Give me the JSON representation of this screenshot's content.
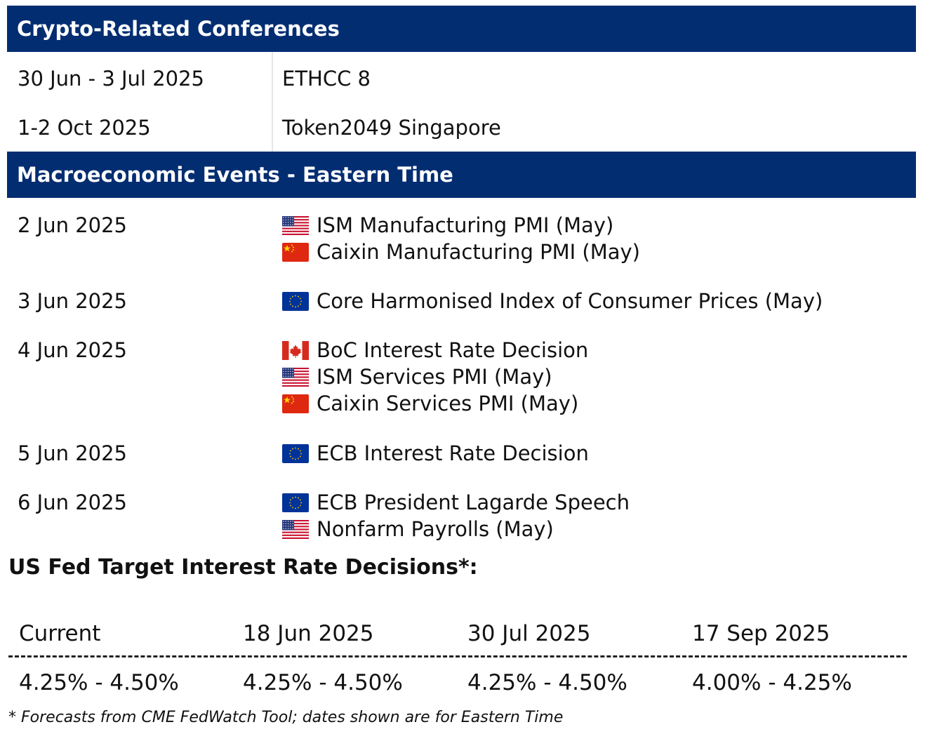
{
  "conferences": {
    "title": "Crypto-Related Conferences",
    "rows": [
      {
        "date": "30 Jun - 3 Jul 2025",
        "event": "ETHCC 8"
      },
      {
        "date": "1-2 Oct 2025",
        "event": "Token2049 Singapore"
      }
    ]
  },
  "macro": {
    "title": "Macroeconomic Events - Eastern Time",
    "rows": [
      {
        "date": "2 Jun 2025",
        "events": [
          {
            "flag": "us-flag-icon",
            "label": "ISM Manufacturing PMI (May)"
          },
          {
            "flag": "cn-flag-icon",
            "label": "Caixin Manufacturing PMI (May)"
          }
        ]
      },
      {
        "date": "3 Jun 2025",
        "events": [
          {
            "flag": "eu-flag-icon",
            "label": "Core Harmonised Index of Consumer Prices (May)"
          }
        ]
      },
      {
        "date": "4 Jun 2025",
        "events": [
          {
            "flag": "ca-flag-icon",
            "label": "BoC Interest Rate Decision"
          },
          {
            "flag": "us-flag-icon",
            "label": "ISM Services PMI (May)"
          },
          {
            "flag": "cn-flag-icon",
            "label": "Caixin Services PMI (May)"
          }
        ]
      },
      {
        "date": "5 Jun 2025",
        "events": [
          {
            "flag": "eu-flag-icon",
            "label": "ECB Interest Rate Decision"
          }
        ]
      },
      {
        "date": "6 Jun 2025",
        "events": [
          {
            "flag": "eu-flag-icon",
            "label": "ECB President Lagarde Speech"
          },
          {
            "flag": "us-flag-icon",
            "label": "Nonfarm Payrolls (May)"
          }
        ]
      }
    ]
  },
  "fed": {
    "title": "US Fed Target Interest Rate Decisions*:",
    "columns": [
      {
        "date": "Current",
        "rate": "4.25% - 4.50%"
      },
      {
        "date": "18 Jun 2025",
        "rate": "4.25% - 4.50%"
      },
      {
        "date": "30 Jul 2025",
        "rate": "4.25% - 4.50%"
      },
      {
        "date": "17 Sep 2025",
        "rate": "4.00% - 4.25%"
      }
    ],
    "footnote": "* Forecasts from CME FedWatch Tool; dates shown are for Eastern Time"
  },
  "colors": {
    "header_bg": "#032d71",
    "header_text": "#ffffff"
  }
}
